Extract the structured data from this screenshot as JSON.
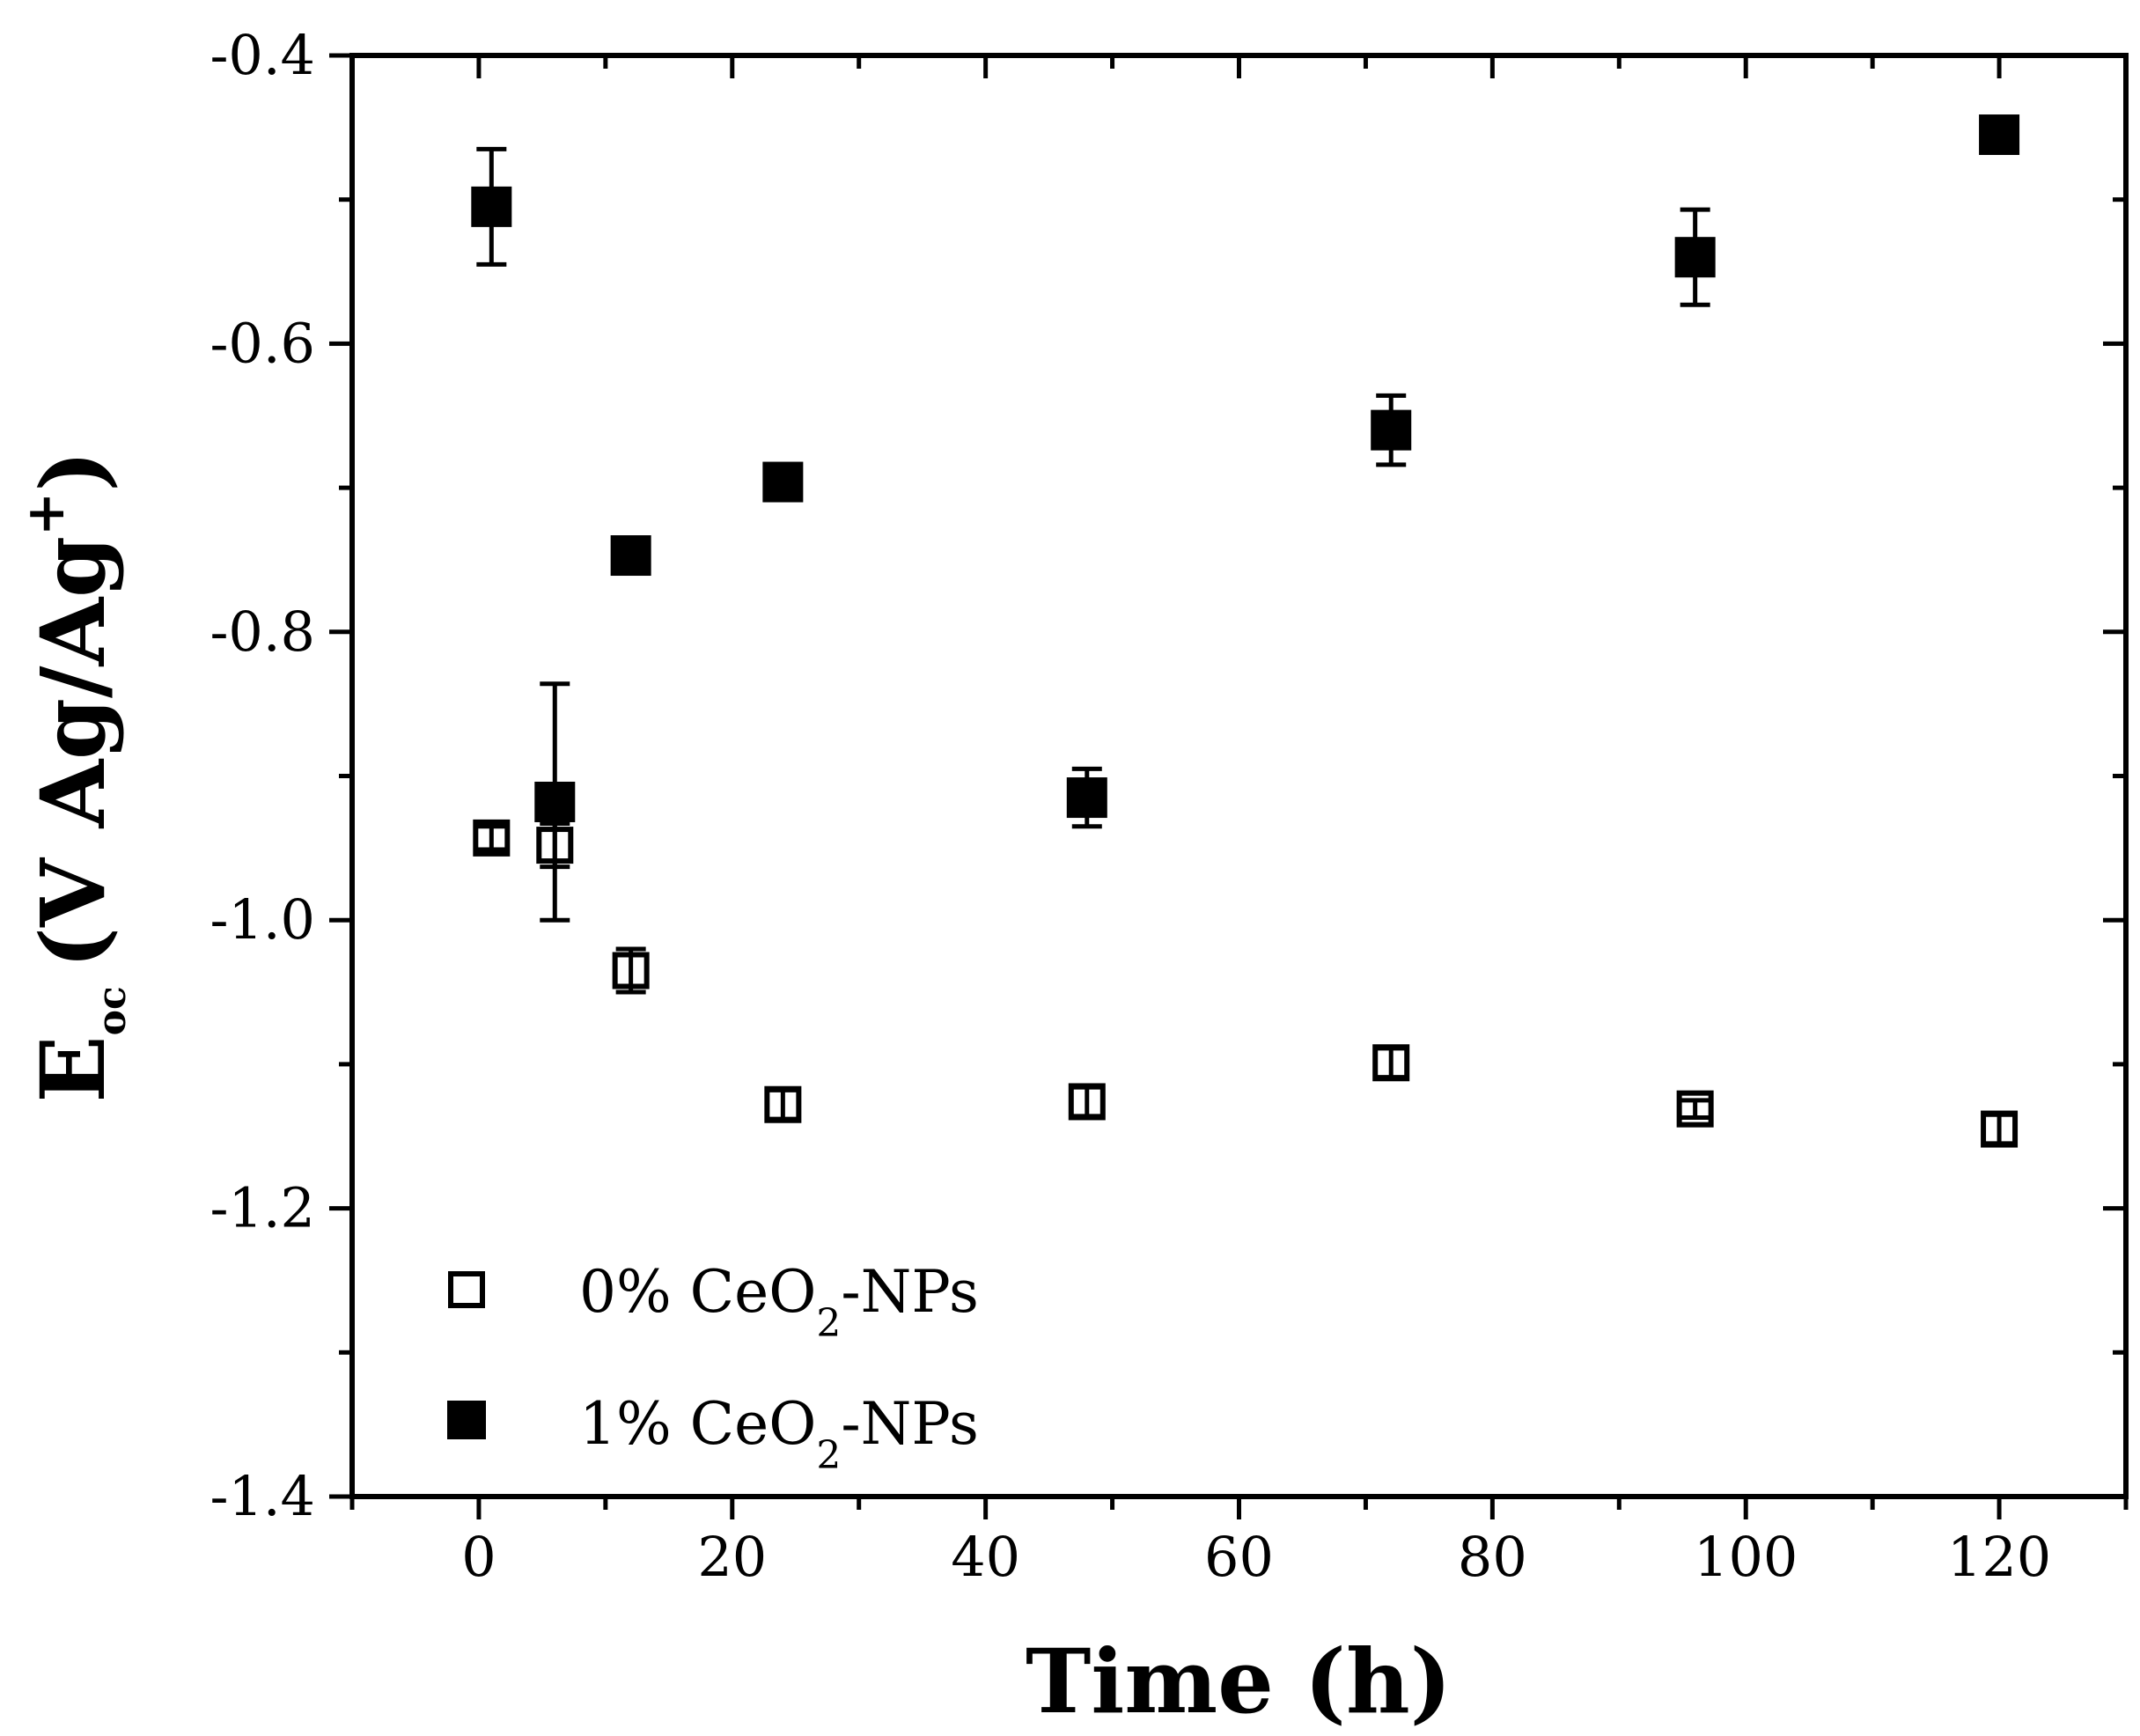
{
  "chart_data": {
    "type": "scatter",
    "title": "",
    "xlabel": "Time (h)",
    "ylabel": {
      "main": "E",
      "subscript": "oc",
      "units_prefix": "(V Ag/Ag",
      "superscript": "+",
      "units_suffix": ")"
    },
    "xlim": [
      -10,
      130
    ],
    "ylim": [
      -1.4,
      -0.4
    ],
    "xticks": [
      0,
      20,
      40,
      60,
      80,
      100,
      120
    ],
    "xtick_labels": [
      "0",
      "20",
      "40",
      "60",
      "80",
      "100",
      "120"
    ],
    "yticks": [
      -1.4,
      -1.2,
      -1.0,
      -0.8,
      -0.6,
      -0.4
    ],
    "ytick_labels": [
      "-1.4",
      "-1.2",
      "-1.0",
      "-0.8",
      "-0.6",
      "-0.4"
    ],
    "grid": false,
    "legend_position": "bottom-left",
    "series": [
      {
        "name": "0% CeO2-NPs",
        "legend_prefix": "0% CeO",
        "legend_sub": "2",
        "legend_suffix": "-NPs",
        "marker": "open-square",
        "x": [
          1,
          6,
          12,
          24,
          48,
          72,
          96,
          120
        ],
        "y": [
          -0.943,
          -0.948,
          -1.035,
          -1.128,
          -1.126,
          -1.099,
          -1.131,
          -1.145
        ],
        "err": [
          0.008,
          0.015,
          0.015,
          0.01,
          0.01,
          0.01,
          0.006,
          0.01
        ]
      },
      {
        "name": "1% CeO2-NPs",
        "legend_prefix": "1% CeO",
        "legend_sub": "2",
        "legend_suffix": "-NPs",
        "marker": "filled-square",
        "x": [
          1,
          6,
          12,
          24,
          48,
          72,
          96,
          120
        ],
        "y": [
          -0.505,
          -0.918,
          -0.747,
          -0.696,
          -0.915,
          -0.66,
          -0.54,
          -0.455
        ],
        "err": [
          0.04,
          0.082,
          0.01,
          0.01,
          0.02,
          0.024,
          0.033,
          0.012
        ]
      }
    ]
  }
}
